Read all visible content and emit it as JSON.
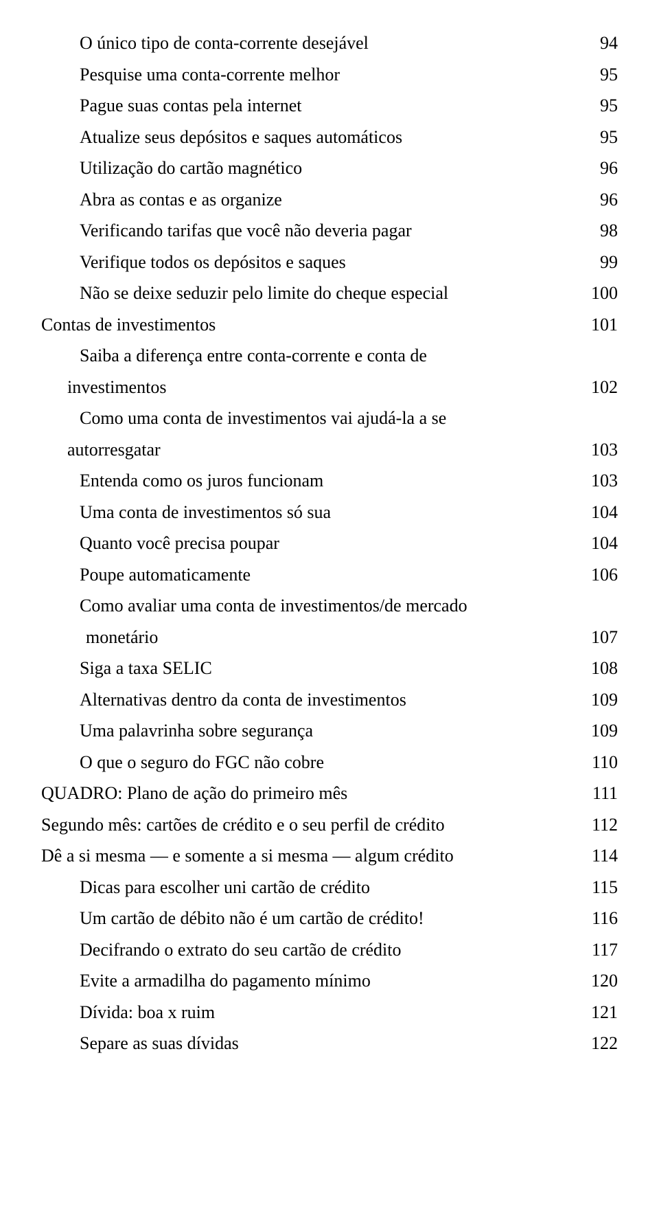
{
  "colors": {
    "background": "#ffffff",
    "text": "#000000"
  },
  "typography": {
    "font_family": "Georgia, 'Times New Roman', serif",
    "base_fontsize_pt": 19,
    "line_height": 1.75
  },
  "entries": [
    {
      "text": "O único tipo de conta-corrente desejável",
      "page": "94",
      "indent": 2
    },
    {
      "text": "Pesquise uma conta-corrente melhor",
      "page": "95",
      "indent": 2
    },
    {
      "text": "Pague suas contas pela internet",
      "page": "95",
      "indent": 2
    },
    {
      "text": "Atualize seus depósitos e saques automáticos",
      "page": "95",
      "indent": 2
    },
    {
      "text": "Utilização do cartão magnético",
      "page": "96",
      "indent": 2
    },
    {
      "text": "Abra as contas e as organize",
      "page": "96",
      "indent": 2
    },
    {
      "text": "Verificando tarifas que você não deveria pagar",
      "page": "98",
      "indent": 2
    },
    {
      "text": "Verifique todos os depósitos e saques",
      "page": "99",
      "indent": 2
    },
    {
      "text": "Não se deixe seduzir pelo limite do cheque especial",
      "page": "100",
      "indent": 2
    },
    {
      "text": "Contas de investimentos",
      "page": "101",
      "indent": 0
    },
    {
      "text": "Saiba a diferença entre conta-corrente e conta de",
      "indent": 2,
      "cont": "investimentos",
      "cont_indent": "cont",
      "page": "102"
    },
    {
      "text": "Como uma conta de investimentos vai ajudá-la a se",
      "indent": 2,
      "cont": "autorresgatar",
      "cont_indent": "cont",
      "page": "103"
    },
    {
      "text": "Entenda como os juros funcionam",
      "page": "103",
      "indent": 2
    },
    {
      "text": "Uma conta de investimentos só sua",
      "page": "104",
      "indent": 2
    },
    {
      "text": "Quanto você precisa poupar",
      "page": "104",
      "indent": 2
    },
    {
      "text": "Poupe automaticamente",
      "page": "106",
      "indent": 2
    },
    {
      "text": "Como avaliar uma conta de investimentos/de mercado",
      "indent": 2,
      "cont": "monetário",
      "cont_indent": "cont2",
      "page": "107"
    },
    {
      "text": "Siga a taxa SELIC",
      "page": "108",
      "indent": 2
    },
    {
      "text": "Alternativas dentro da conta de investimentos",
      "page": "109",
      "indent": 2
    },
    {
      "text": "Uma palavrinha sobre segurança",
      "page": "109",
      "indent": 2
    },
    {
      "text": "O que o seguro do FGC não cobre",
      "page": "110",
      "indent": 2
    },
    {
      "text": "QUADRO: Plano de ação do primeiro mês",
      "page": "111",
      "indent": 0
    },
    {
      "text": "Segundo mês: cartões de crédito e o seu perfil de crédito",
      "page": "112",
      "indent": 0
    },
    {
      "text": "Dê a si mesma — e somente a si mesma — algum crédito",
      "page": "114",
      "indent": 0
    },
    {
      "text": "Dicas para escolher uni cartão de crédito",
      "page": "115",
      "indent": 2
    },
    {
      "text": "Um cartão de débito não é um cartão de crédito!",
      "page": "116",
      "indent": 2
    },
    {
      "text": "Decifrando o extrato do seu cartão de crédito",
      "page": "117",
      "indent": 2
    },
    {
      "text": "Evite a armadilha do pagamento mínimo",
      "page": "120",
      "indent": 2
    },
    {
      "text": "Dívida: boa x ruim",
      "page": "121",
      "indent": 2
    },
    {
      "text": "Separe as suas dívidas",
      "page": "122",
      "indent": 2
    }
  ]
}
